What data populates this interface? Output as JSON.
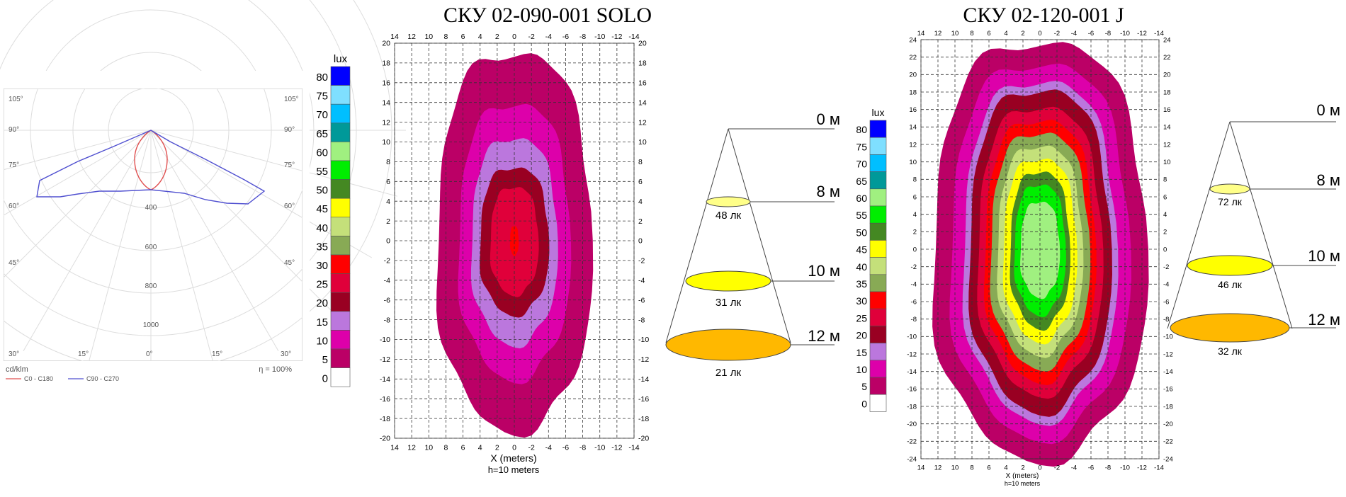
{
  "polar": {
    "angle_labels_upper": [
      "105°",
      "90°",
      "75°",
      "60°",
      "45°"
    ],
    "angle_labels_bottom": [
      "30°",
      "15°",
      "0°",
      "15°",
      "30°"
    ],
    "radial_labels": [
      "400",
      "600",
      "800",
      "1000"
    ],
    "unit": "cd/klm",
    "efficiency": "η = 100%",
    "legend": [
      {
        "name": "C0 - C180",
        "color": "#e05050"
      },
      {
        "name": "C90 - C270",
        "color": "#5050d0"
      }
    ]
  },
  "legend_scale": {
    "unit": "lux",
    "levels": [
      {
        "value": 80,
        "color": "#0000ff"
      },
      {
        "value": 75,
        "color": "#7fdfff"
      },
      {
        "value": 70,
        "color": "#00bfff"
      },
      {
        "value": 65,
        "color": "#009999"
      },
      {
        "value": 60,
        "color": "#a0f080"
      },
      {
        "value": 55,
        "color": "#00ee00"
      },
      {
        "value": 50,
        "color": "#448822"
      },
      {
        "value": 45,
        "color": "#ffff00"
      },
      {
        "value": 40,
        "color": "#c4e07a"
      },
      {
        "value": 35,
        "color": "#88aa55"
      },
      {
        "value": 30,
        "color": "#ff0000"
      },
      {
        "value": 25,
        "color": "#e0003a"
      },
      {
        "value": 20,
        "color": "#990022"
      },
      {
        "value": 15,
        "color": "#bb77dd"
      },
      {
        "value": 10,
        "color": "#dd00aa"
      },
      {
        "value": 5,
        "color": "#bb0066"
      },
      {
        "value": 0,
        "color": "#ffffff"
      }
    ]
  },
  "chart_data": [
    {
      "type": "heatmap",
      "title": "СКУ 02-090-001 SOLO",
      "xlabel": "X (meters)",
      "sublabel": "h=10 meters",
      "x_ticks": [
        "14",
        "12",
        "10",
        "8",
        "6",
        "4",
        "2",
        "0",
        "-2",
        "-4",
        "-6",
        "-8",
        "-10",
        "-12",
        "-14"
      ],
      "y_ticks": [
        "20",
        "18",
        "16",
        "14",
        "12",
        "10",
        "8",
        "6",
        "4",
        "2",
        "0",
        "-2",
        "-4",
        "-6",
        "-8",
        "-10",
        "-12",
        "-14",
        "-16",
        "-18",
        "-20"
      ],
      "xlim": [
        14,
        -14
      ],
      "ylim": [
        -20,
        20
      ],
      "contours": [
        {
          "level": 5,
          "color": "#bb0066",
          "half_width": 9,
          "half_height": 19.2
        },
        {
          "level": 10,
          "color": "#dd00aa",
          "half_width": 6.5,
          "half_height": 14
        },
        {
          "level": 15,
          "color": "#bb77dd",
          "half_width": 5,
          "half_height": 10.5
        },
        {
          "level": 20,
          "color": "#990022",
          "half_width": 4,
          "half_height": 7.5
        },
        {
          "level": 25,
          "color": "#e0003a",
          "half_width": 2.8,
          "half_height": 5.5
        },
        {
          "level": 30,
          "color": "#ff0000",
          "half_width": 0.5,
          "half_height": 1.5
        }
      ]
    },
    {
      "type": "heatmap",
      "title": "СКУ 02-120-001 J",
      "xlabel": "X (meters)",
      "sublabel": "h=10 meters",
      "x_ticks": [
        "14",
        "12",
        "10",
        "8",
        "6",
        "4",
        "2",
        "0",
        "-2",
        "-4",
        "-6",
        "-8",
        "-10",
        "-12",
        "-14"
      ],
      "y_ticks": [
        "24",
        "22",
        "20",
        "18",
        "16",
        "14",
        "12",
        "10",
        "8",
        "6",
        "4",
        "2",
        "0",
        "-2",
        "-4",
        "-6",
        "-8",
        "-10",
        "-12",
        "-14",
        "-16",
        "-18",
        "-20",
        "-22",
        "-24"
      ],
      "xlim": [
        14,
        -14
      ],
      "ylim": [
        -24,
        24
      ],
      "contours": [
        {
          "level": 5,
          "color": "#bb0066",
          "half_width": 12.5,
          "half_height": 24
        },
        {
          "level": 10,
          "color": "#dd00aa",
          "half_width": 10.5,
          "half_height": 21.5
        },
        {
          "level": 15,
          "color": "#bb77dd",
          "half_width": 9,
          "half_height": 19.5
        },
        {
          "level": 20,
          "color": "#990022",
          "half_width": 8.3,
          "half_height": 18.5
        },
        {
          "level": 25,
          "color": "#e0003a",
          "half_width": 7.3,
          "half_height": 16.5
        },
        {
          "level": 30,
          "color": "#ff0000",
          "half_width": 6.5,
          "half_height": 15
        },
        {
          "level": 35,
          "color": "#88aa55",
          "half_width": 5.8,
          "half_height": 13.5
        },
        {
          "level": 40,
          "color": "#c4e07a",
          "half_width": 5,
          "half_height": 12
        },
        {
          "level": 45,
          "color": "#ffff00",
          "half_width": 4.3,
          "half_height": 10.5
        },
        {
          "level": 50,
          "color": "#448822",
          "half_width": 3.5,
          "half_height": 9
        },
        {
          "level": 55,
          "color": "#00ee00",
          "half_width": 3.0,
          "half_height": 7.5
        },
        {
          "level": 60,
          "color": "#a0f080",
          "half_width": 2.3,
          "half_height": 5.5
        }
      ]
    }
  ],
  "cone1": {
    "heights": [
      "0 м",
      "8 м",
      "10 м",
      "12 м"
    ],
    "values": [
      "48 лк",
      "31 лк",
      "21 лк"
    ],
    "colors": [
      "#ffff88",
      "#ffff00",
      "#ffb800"
    ]
  },
  "cone2": {
    "heights": [
      "0 м",
      "8 м",
      "10 м",
      "12 м"
    ],
    "values": [
      "72 лк",
      "46 лк",
      "32 лк"
    ],
    "colors": [
      "#ffff88",
      "#ffff00",
      "#ffb800"
    ]
  }
}
